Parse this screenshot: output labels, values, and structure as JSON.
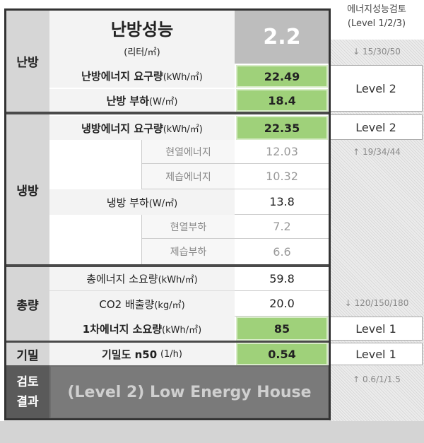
{
  "top_hint": "에너지성능검토",
  "review_header": {
    "title": "에너지성능검토",
    "subtitle": "(Level 1/2/3)"
  },
  "heating": {
    "category": "난방",
    "performance_label": "난방성능",
    "performance_unit": "(리터/㎡)",
    "performance_value": "2.2",
    "energy_label": "난방에너지 요구량",
    "energy_unit": "(kWh/㎡)",
    "energy_value": "22.49",
    "load_label": "난방 부하",
    "load_unit": "(W/㎡)",
    "load_value": "18.4",
    "threshold": "↓ 15/30/50",
    "level": "Level 2"
  },
  "cooling": {
    "category": "냉방",
    "energy_label": "냉방에너지 요구량",
    "energy_unit": "(kWh/㎡)",
    "energy_value": "22.35",
    "sensible_energy_label": "현열에너지",
    "sensible_energy_value": "12.03",
    "latent_energy_label": "제습에너지",
    "latent_energy_value": "10.32",
    "load_label": "냉방 부하",
    "load_unit": "(W/㎡)",
    "load_value": "13.8",
    "sensible_load_label": "현열부하",
    "sensible_load_value": "7.2",
    "latent_load_label": "제습부하",
    "latent_load_value": "6.6",
    "level": "Level 2",
    "threshold": "↑ 19/34/44"
  },
  "total": {
    "category": "총량",
    "total_energy_label": "총에너지 소요량",
    "total_energy_unit": "(kWh/㎡)",
    "total_energy_value": "59.8",
    "co2_label": "CO2 배출량",
    "co2_unit": "(kg/㎡)",
    "co2_value": "20.0",
    "threshold": "↓ 120/150/180",
    "primary_energy_label": "1차에너지 소요량",
    "primary_energy_unit": "(kWh/㎡)",
    "primary_energy_value": "85",
    "level": "Level 1"
  },
  "airtight": {
    "category": "기밀",
    "label": "기밀도 n50",
    "unit": "(1/h)",
    "value": "0.54",
    "level": "Level 1",
    "threshold": "↑ 0.6/1/1.5"
  },
  "result": {
    "category": "검토\n결과",
    "text": "(Level 2) Low Energy House"
  }
}
